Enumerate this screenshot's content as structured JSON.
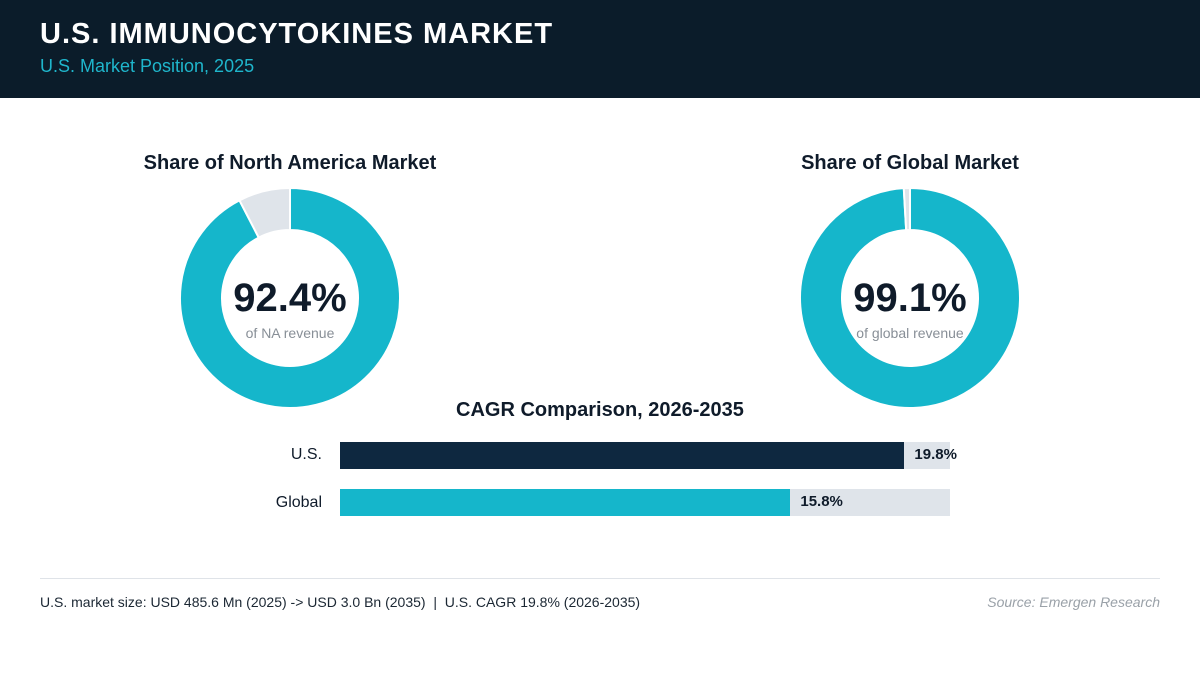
{
  "header": {
    "title": "U.S. IMMUNOCYTOKINES MARKET",
    "subtitle": "U.S. Market Position, 2025"
  },
  "colors": {
    "accent": "#15b6cb",
    "dark": "#0e2840",
    "track": "#dfe4ea",
    "header_bg": "#0b1c2a"
  },
  "chart_data": [
    {
      "type": "pie",
      "title": "Share of North America Market",
      "center_value": "92.4%",
      "center_caption": "of NA revenue",
      "values": [
        92.4,
        7.6
      ]
    },
    {
      "type": "pie",
      "title": "Share of Global Market",
      "center_value": "99.1%",
      "center_caption": "of global revenue",
      "values": [
        99.1,
        0.9
      ]
    },
    {
      "type": "bar",
      "orientation": "horizontal",
      "title": "CAGR Comparison, 2026-2035",
      "categories": [
        "U.S.",
        "Global"
      ],
      "values": [
        19.8,
        15.8
      ],
      "value_labels": [
        "19.8%",
        "15.8%"
      ],
      "xlim": [
        0,
        21.4
      ]
    }
  ],
  "footer": {
    "note": "U.S. market size: USD 485.6 Mn (2025) -> USD 3.0 Bn (2035)  |  U.S. CAGR 19.8% (2026-2035)",
    "source": "Source: Emergen Research"
  }
}
